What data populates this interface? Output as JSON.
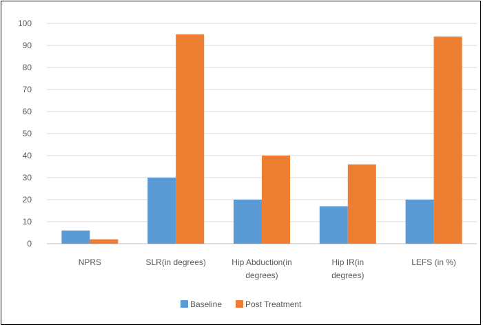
{
  "chart_data": {
    "type": "bar",
    "categories": [
      [
        "NPRS"
      ],
      [
        "SLR(in degrees)"
      ],
      [
        "Hip Abduction(in",
        "degrees)"
      ],
      [
        "Hip IR(in",
        "degrees)"
      ],
      [
        "LEFS (in %)"
      ]
    ],
    "series": [
      {
        "name": "Baseline",
        "values": [
          6,
          30,
          20,
          17,
          20
        ],
        "color": "#5b9bd5"
      },
      {
        "name": "Post Treatment",
        "values": [
          2,
          95,
          40,
          36,
          94
        ],
        "color": "#ed7d31"
      }
    ],
    "ylim": [
      0,
      100
    ],
    "yticks": [
      0,
      10,
      20,
      30,
      40,
      50,
      60,
      70,
      80,
      90,
      100
    ],
    "grid": true,
    "legend_position": "bottom"
  }
}
